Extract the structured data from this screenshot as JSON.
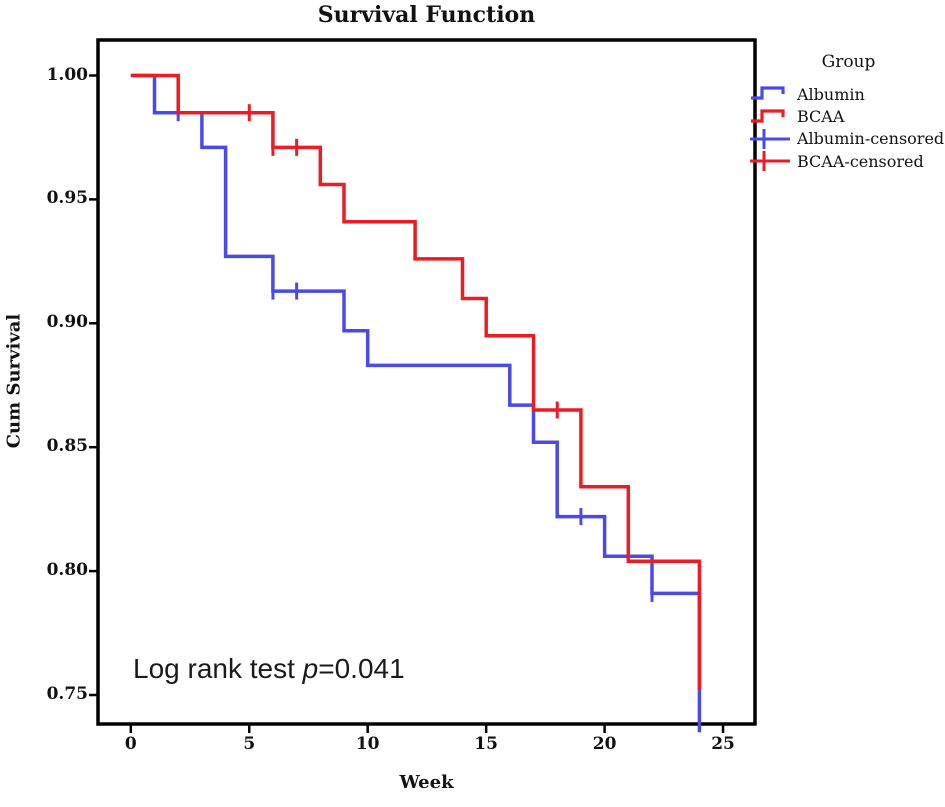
{
  "title": "Survival Function",
  "xlabel": "Week",
  "ylabel": "Cum Survival",
  "annotation": {
    "prefix": "Log rank test ",
    "italic": "p",
    "suffix": "=0.041"
  },
  "legend": {
    "title": "Group",
    "items": [
      {
        "label": "Albumin",
        "type": "step",
        "color": "#4A4AE8"
      },
      {
        "label": "BCAA",
        "type": "step",
        "color": "#EB1C24"
      },
      {
        "label": "Albumin-censored",
        "type": "censor",
        "color": "#4A4AE8"
      },
      {
        "label": "BCAA-censored",
        "type": "censor",
        "color": "#EB1C24"
      }
    ]
  },
  "colors": {
    "albumin": "#4A4AE8",
    "bcaa": "#EB1C24",
    "frame": "#000000",
    "background": "#FFFFFF"
  },
  "chart_data": {
    "type": "line",
    "subtype": "kaplan-meier-step-function",
    "title": "Survival Function",
    "xlabel": "Week",
    "ylabel": "Cum Survival",
    "xticks": [
      0,
      5,
      10,
      15,
      20,
      25
    ],
    "yticks": [
      {
        "label": "1.00",
        "value": 1.0
      },
      {
        "label": "0.95",
        "value": 0.95
      },
      {
        "label": "0.90",
        "value": 0.9
      },
      {
        "label": "0.85",
        "value": 0.85
      },
      {
        "label": "0.80",
        "value": 0.8
      },
      {
        "label": "0.75",
        "value": 0.75
      }
    ],
    "xlim": [
      -1.4,
      26.3
    ],
    "ylim": [
      0.738,
      1.014
    ],
    "grid": false,
    "legend_position": "right-outside",
    "annotation": "Log rank test p=0.041",
    "series": [
      {
        "name": "Albumin",
        "color": "#4A4AE8",
        "steps": [
          [
            0,
            1.0
          ],
          [
            1,
            0.985
          ],
          [
            3,
            0.971
          ],
          [
            4,
            0.927
          ],
          [
            6,
            0.913
          ],
          [
            9,
            0.897
          ],
          [
            10,
            0.883
          ],
          [
            16,
            0.867
          ],
          [
            17,
            0.852
          ],
          [
            18,
            0.822
          ],
          [
            20,
            0.806
          ],
          [
            22,
            0.791
          ],
          [
            24,
            0.735
          ]
        ],
        "censored": [
          [
            2,
            0.985
          ],
          [
            6,
            0.913
          ],
          [
            7,
            0.913
          ],
          [
            19,
            0.822
          ],
          [
            22,
            0.791
          ]
        ]
      },
      {
        "name": "BCAA",
        "color": "#EB1C24",
        "steps": [
          [
            0,
            1.0
          ],
          [
            2,
            0.985
          ],
          [
            6,
            0.971
          ],
          [
            8,
            0.956
          ],
          [
            9,
            0.941
          ],
          [
            12,
            0.926
          ],
          [
            14,
            0.91
          ],
          [
            15,
            0.895
          ],
          [
            17,
            0.865
          ],
          [
            19,
            0.834
          ],
          [
            21,
            0.804
          ],
          [
            24,
            0.752
          ]
        ],
        "censored": [
          [
            5,
            0.985
          ],
          [
            6,
            0.971
          ],
          [
            7,
            0.971
          ],
          [
            18,
            0.865
          ]
        ]
      }
    ]
  }
}
